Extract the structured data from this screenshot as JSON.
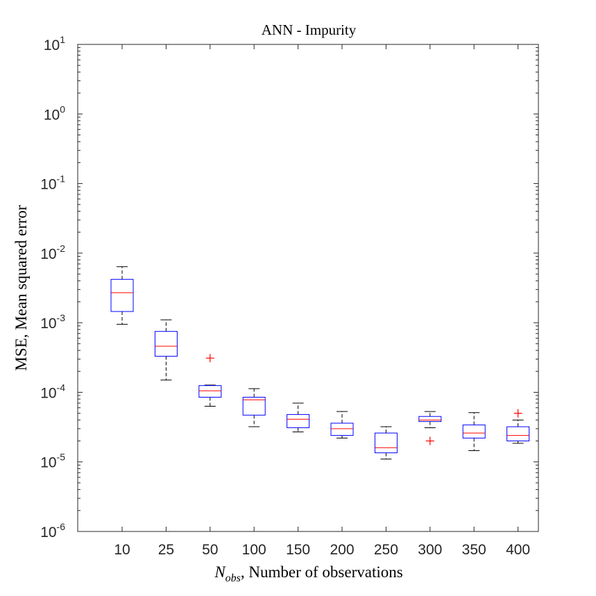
{
  "chart_data": {
    "type": "boxplot",
    "title": "ANN - Impurity",
    "xlabel_symbol": "N",
    "xlabel_subscript": "obs",
    "xlabel_rest": ", Number of observations",
    "ylabel": "MSE, Mean squared error",
    "y_scale": "log",
    "ylim": [
      1e-06,
      10
    ],
    "y_ticks": [
      {
        "base": "10",
        "exp": "1",
        "value": 10
      },
      {
        "base": "10",
        "exp": "0",
        "value": 1
      },
      {
        "base": "10",
        "exp": "-1",
        "value": 0.1
      },
      {
        "base": "10",
        "exp": "-2",
        "value": 0.01
      },
      {
        "base": "10",
        "exp": "-3",
        "value": 0.001
      },
      {
        "base": "10",
        "exp": "-4",
        "value": 0.0001
      },
      {
        "base": "10",
        "exp": "-5",
        "value": 1e-05
      },
      {
        "base": "10",
        "exp": "-6",
        "value": 1e-06
      }
    ],
    "categories": [
      "10",
      "25",
      "50",
      "100",
      "150",
      "200",
      "250",
      "300",
      "350",
      "400"
    ],
    "boxes": [
      {
        "whisker_low": 0.00095,
        "q1": 0.00145,
        "median": 0.0027,
        "q3": 0.0042,
        "whisker_high": 0.0064,
        "outliers": []
      },
      {
        "whisker_low": 0.00015,
        "q1": 0.00033,
        "median": 0.00046,
        "q3": 0.00075,
        "whisker_high": 0.0011,
        "outliers": []
      },
      {
        "whisker_low": 6.3e-05,
        "q1": 8.5e-05,
        "median": 0.000105,
        "q3": 0.000125,
        "whisker_high": 0.000127,
        "outliers": [
          0.00031
        ]
      },
      {
        "whisker_low": 3.2e-05,
        "q1": 4.7e-05,
        "median": 7.8e-05,
        "q3": 8.5e-05,
        "whisker_high": 0.000113,
        "outliers": []
      },
      {
        "whisker_low": 2.7e-05,
        "q1": 3.1e-05,
        "median": 4.1e-05,
        "q3": 4.8e-05,
        "whisker_high": 7e-05,
        "outliers": []
      },
      {
        "whisker_low": 2.2e-05,
        "q1": 2.4e-05,
        "median": 3e-05,
        "q3": 3.6e-05,
        "whisker_high": 5.3e-05,
        "outliers": []
      },
      {
        "whisker_low": 1.1e-05,
        "q1": 1.35e-05,
        "median": 1.6e-05,
        "q3": 2.6e-05,
        "whisker_high": 3.2e-05,
        "outliers": []
      },
      {
        "whisker_low": 3.1e-05,
        "q1": 3.8e-05,
        "median": 4e-05,
        "q3": 4.5e-05,
        "whisker_high": 5.3e-05,
        "outliers": [
          2e-05
        ]
      },
      {
        "whisker_low": 1.45e-05,
        "q1": 2.2e-05,
        "median": 2.6e-05,
        "q3": 3.4e-05,
        "whisker_high": 5.1e-05,
        "outliers": []
      },
      {
        "whisker_low": 1.85e-05,
        "q1": 2e-05,
        "median": 2.4e-05,
        "q3": 3.2e-05,
        "whisker_high": 4e-05,
        "outliers": [
          5e-05
        ]
      }
    ],
    "colors": {
      "box": "#0000ff",
      "median": "#ff0000",
      "whisker": "#000000",
      "outlier": "#ff0000",
      "axis": "#262626"
    }
  }
}
